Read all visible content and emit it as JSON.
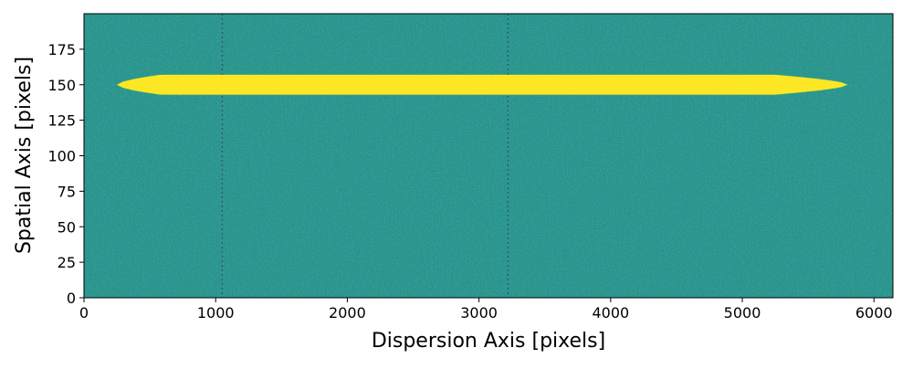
{
  "chart_data": {
    "type": "heatmap",
    "title": "",
    "xlabel": "Dispersion Axis  [pixels]",
    "ylabel": "Spatial Axis  [pixels]",
    "xlim": [
      0,
      6144
    ],
    "ylim": [
      0,
      200
    ],
    "x_ticks": [
      0,
      1000,
      2000,
      3000,
      4000,
      5000,
      6000
    ],
    "y_ticks": [
      0,
      25,
      50,
      75,
      100,
      125,
      150,
      175
    ],
    "x_tick_labels": [
      "0",
      "1000",
      "2000",
      "3000",
      "4000",
      "5000",
      "6000"
    ],
    "y_tick_labels": [
      "0",
      "25",
      "50",
      "75",
      "100",
      "125",
      "150",
      "175"
    ],
    "colormap": "viridis",
    "background_color": "#26938b",
    "trace_color": "#fde725",
    "trace": {
      "center_y": 150,
      "half_width_max": 7,
      "x_start": 250,
      "x_end": 5800
    },
    "column_artifacts_x": [
      1050,
      3220
    ],
    "grid": false,
    "legend": "none"
  }
}
